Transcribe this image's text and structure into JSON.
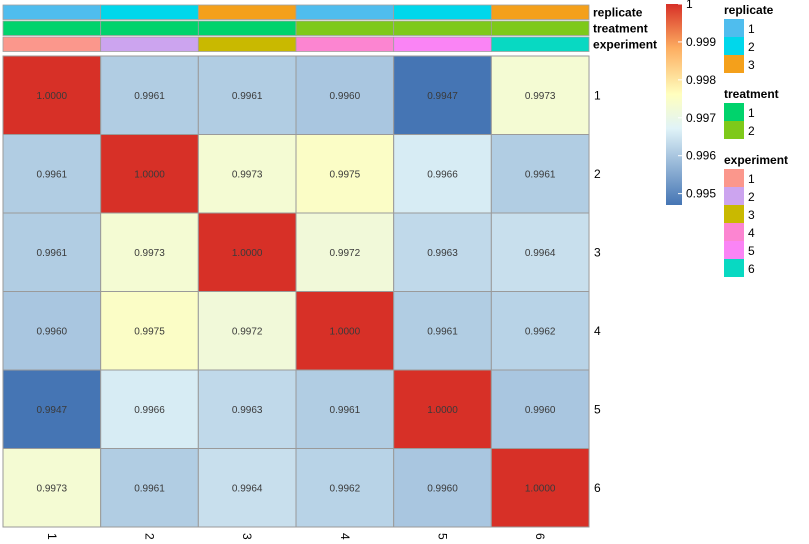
{
  "chart_data": {
    "type": "heatmap",
    "rows": [
      "1",
      "2",
      "3",
      "4",
      "5",
      "6"
    ],
    "columns": [
      "1",
      "2",
      "3",
      "4",
      "5",
      "6"
    ],
    "values": [
      [
        1.0,
        0.9961,
        0.9961,
        0.996,
        0.9947,
        0.9973
      ],
      [
        0.9961,
        1.0,
        0.9973,
        0.9975,
        0.9966,
        0.9961
      ],
      [
        0.9961,
        0.9973,
        1.0,
        0.9972,
        0.9963,
        0.9964
      ],
      [
        0.996,
        0.9975,
        0.9972,
        1.0,
        0.9961,
        0.9962
      ],
      [
        0.9947,
        0.9966,
        0.9963,
        0.9961,
        1.0,
        0.996
      ],
      [
        0.9973,
        0.9961,
        0.9964,
        0.9962,
        0.996,
        1.0
      ]
    ],
    "cell_labels": [
      [
        "1.0000",
        "0.9961",
        "0.9961",
        "0.9960",
        "0.9947",
        "0.9973"
      ],
      [
        "0.9961",
        "1.0000",
        "0.9973",
        "0.9975",
        "0.9966",
        "0.9961"
      ],
      [
        "0.9961",
        "0.9973",
        "1.0000",
        "0.9972",
        "0.9963",
        "0.9964"
      ],
      [
        "0.9960",
        "0.9975",
        "0.9972",
        "1.0000",
        "0.9961",
        "0.9962"
      ],
      [
        "0.9947",
        "0.9966",
        "0.9963",
        "0.9961",
        "1.0000",
        "0.9960"
      ],
      [
        "0.9973",
        "0.9961",
        "0.9964",
        "0.9962",
        "0.9960",
        "1.0000"
      ]
    ],
    "color_scale": {
      "min": 0.9947,
      "max": 1.0,
      "colors": [
        "#4575b4",
        "#e0f3f8",
        "#ffffbf",
        "#fdae61",
        "#d73027"
      ],
      "ticks": [
        {
          "value": 0.995,
          "label": "0.995"
        },
        {
          "value": 0.996,
          "label": "0.996"
        },
        {
          "value": 0.997,
          "label": "0.997"
        },
        {
          "value": 0.998,
          "label": "0.998"
        },
        {
          "value": 0.999,
          "label": "0.999"
        },
        {
          "value": 1.0,
          "label": "1"
        }
      ]
    },
    "annotations": [
      {
        "name": "replicate",
        "values": [
          "1",
          "2",
          "3",
          "1",
          "2",
          "3"
        ]
      },
      {
        "name": "treatment",
        "values": [
          "1",
          "1",
          "1",
          "2",
          "2",
          "2"
        ]
      },
      {
        "name": "experiment",
        "values": [
          "1",
          "2",
          "3",
          "4",
          "5",
          "6"
        ]
      }
    ],
    "legends": [
      {
        "title": "replicate",
        "items": [
          {
            "label": "1",
            "color": "#4fbdee"
          },
          {
            "label": "2",
            "color": "#00d7eb"
          },
          {
            "label": "3",
            "color": "#f4a01b"
          }
        ]
      },
      {
        "title": "treatment",
        "items": [
          {
            "label": "1",
            "color": "#00d36c"
          },
          {
            "label": "2",
            "color": "#7ec91a"
          }
        ]
      },
      {
        "title": "experiment",
        "items": [
          {
            "label": "1",
            "color": "#fb978c"
          },
          {
            "label": "2",
            "color": "#cca4ef"
          },
          {
            "label": "3",
            "color": "#c9b900"
          },
          {
            "label": "4",
            "color": "#fc85d1"
          },
          {
            "label": "5",
            "color": "#fa84f5"
          },
          {
            "label": "6",
            "color": "#08d9c2"
          }
        ]
      }
    ],
    "legend_placement": "right",
    "grid": true
  }
}
